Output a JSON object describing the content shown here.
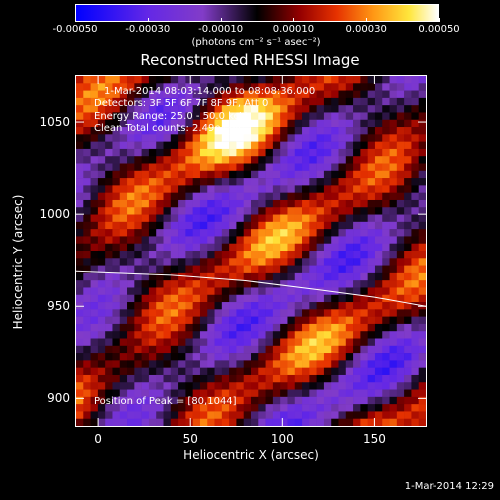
{
  "colorbar": {
    "tick_labels": [
      "-0.00050",
      "-0.00030",
      "-0.00010",
      "0.00010",
      "0.00030",
      "0.00050"
    ],
    "tick_values": [
      -0.0005,
      -0.0003,
      -0.0001,
      0.0001,
      0.0003,
      0.0005
    ],
    "range": [
      -0.0005,
      0.0005
    ],
    "unit_label": "(photons cm⁻² s⁻¹ asec⁻²)"
  },
  "title": "Reconstructed RHESSI Image",
  "annotations": {
    "time_range": "1-Mar-2014 08:03:14.000 to 08:08:36.000",
    "detectors": "Detectors: 3F 5F 6F 7F 8F 9F, Att 0",
    "energy_range": "Energy Range: 25.0 - 50.0 keV",
    "algorithm": "Clean     Total counts: 2.49e+04",
    "peak_position": "Position of Peak = [80,1044]"
  },
  "axes": {
    "x_label": "Heliocentric X (arcsec)",
    "y_label": "Heliocentric Y (arcsec)",
    "x_range": [
      -12,
      178
    ],
    "y_range": [
      885,
      1075
    ],
    "x_ticks": [
      0,
      50,
      100,
      150
    ],
    "y_ticks": [
      900,
      950,
      1000,
      1050
    ],
    "x_tick_labels": [
      "0",
      "50",
      "100",
      "150"
    ],
    "y_tick_labels": [
      "900",
      "950",
      "1000",
      "1050"
    ]
  },
  "limb": {
    "x": [
      -12,
      40,
      80,
      120,
      150,
      178
    ],
    "y": [
      969,
      967,
      964,
      959,
      955,
      950
    ]
  },
  "colors": {
    "background": "#000000",
    "text": "#ffffff",
    "limb": "#ffffff"
  },
  "datestamp": "1-Mar-2014 12:29"
}
